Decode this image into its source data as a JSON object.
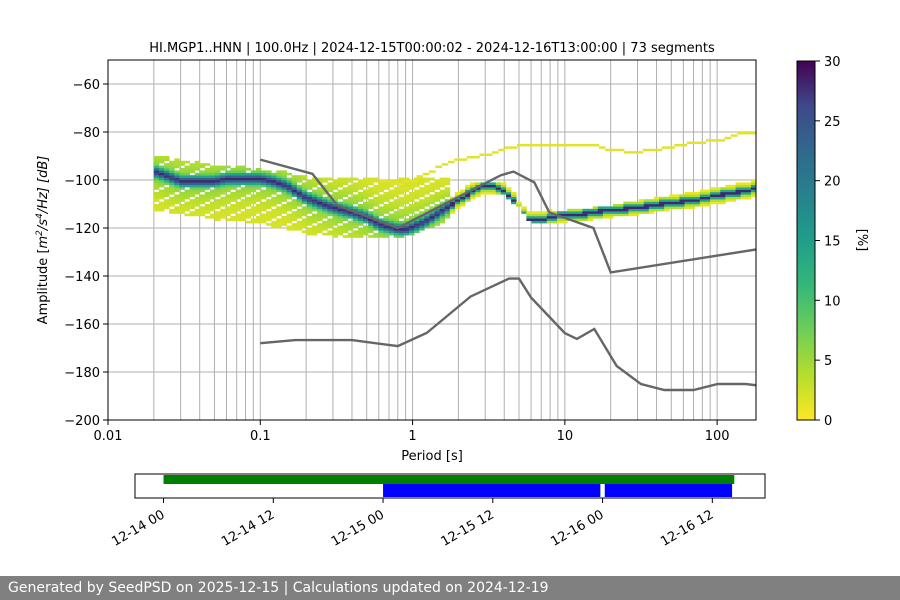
{
  "chart_data": [
    {
      "type": "heatmap",
      "title": "HI.MGP1..HNN | 100.0Hz | 2024-12-15T00:00:02 - 2024-12-16T13:00:00 | 73 segments",
      "xlabel": "Period [s]",
      "ylabel_parts": {
        "pre": "Amplitude [",
        "m": "m",
        "e1": "2",
        "s1": "/s",
        "e2": "4",
        "rest": "/Hz] [dB]"
      },
      "x_scale": "log",
      "xlim": [
        0.01,
        180
      ],
      "ylim": [
        -200,
        -50
      ],
      "x_ticks": [
        {
          "value": 0.01,
          "label": "0.01"
        },
        {
          "value": 0.1,
          "label": "0.1"
        },
        {
          "value": 1,
          "label": "1"
        },
        {
          "value": 10,
          "label": "10"
        },
        {
          "value": 100,
          "label": "100"
        }
      ],
      "y_ticks": [
        {
          "value": -60,
          "label": "−60"
        },
        {
          "value": -80,
          "label": "−80"
        },
        {
          "value": -100,
          "label": "−100"
        },
        {
          "value": -120,
          "label": "−120"
        },
        {
          "value": -140,
          "label": "−140"
        },
        {
          "value": -160,
          "label": "−160"
        },
        {
          "value": -180,
          "label": "−180"
        },
        {
          "value": -200,
          "label": "−200"
        }
      ],
      "grid": true,
      "colormap": "viridis_r",
      "colorbar": {
        "label": "[%]",
        "range": [
          0,
          30
        ],
        "ticks": [
          {
            "value": 0,
            "label": "0"
          },
          {
            "value": 5,
            "label": "5"
          },
          {
            "value": 10,
            "label": "10"
          },
          {
            "value": 15,
            "label": "15"
          },
          {
            "value": 20,
            "label": "20"
          },
          {
            "value": 25,
            "label": "25"
          },
          {
            "value": 30,
            "label": "30"
          }
        ]
      },
      "mode_curve": {
        "period": [
          0.02,
          0.025,
          0.03,
          0.04,
          0.05,
          0.06,
          0.08,
          0.1,
          0.12,
          0.15,
          0.2,
          0.3,
          0.4,
          0.5,
          0.6,
          0.7,
          0.8,
          0.9,
          1.0,
          1.2,
          1.5,
          2.0,
          2.5,
          3.0,
          3.5,
          4.0,
          4.5,
          5.0,
          5.5,
          6.0,
          7.0,
          8.0,
          10,
          12,
          15,
          20,
          30,
          50,
          70,
          100,
          150,
          180
        ],
        "power_db": [
          -97,
          -99,
          -101,
          -101,
          -101,
          -100,
          -100,
          -100,
          -101,
          -103,
          -108,
          -112,
          -114,
          -116,
          -119,
          -120,
          -121,
          -121,
          -120,
          -118,
          -114,
          -109,
          -105,
          -103,
          -103,
          -105,
          -108,
          -113,
          -116,
          -117,
          -117,
          -116,
          -115,
          -115,
          -114,
          -113,
          -112,
          -110,
          -109,
          -107,
          -105,
          -104
        ]
      },
      "density_cells": [
        {
          "period": [
            0.02,
            0.025,
            0.03,
            0.04,
            0.05,
            0.06,
            0.08,
            0.1,
            0.12,
            0.15,
            0.2,
            0.3,
            0.4,
            0.5,
            0.6,
            0.7,
            0.8,
            0.9,
            1.0,
            1.2,
            1.5,
            2.0,
            2.5,
            3.0,
            3.5,
            4.0,
            4.5,
            5.0,
            5.5,
            6.0,
            7.0,
            8.0,
            10,
            12,
            15,
            20,
            30,
            50,
            70,
            100,
            150,
            180
          ],
          "power_db": [
            -97,
            -99,
            -101,
            -101,
            -101,
            -100,
            -100,
            -100,
            -101,
            -103,
            -108,
            -112,
            -114,
            -116,
            -119,
            -120,
            -121,
            -121,
            -120,
            -118,
            -114,
            -109,
            -105,
            -103,
            -103,
            -105,
            -108,
            -113,
            -116,
            -117,
            -117,
            -116,
            -115,
            -115,
            -114,
            -113,
            -112,
            -110,
            -109,
            -107,
            -105,
            -104
          ],
          "percent": 28
        }
      ],
      "density_band": {
        "period": [
          0.02,
          0.03,
          0.05,
          0.08,
          0.1,
          0.15,
          0.2,
          0.3,
          0.4,
          0.6,
          0.8,
          1.0,
          1.5,
          2.0,
          3.0,
          4.0,
          5.0,
          6.0,
          8.0,
          10,
          15,
          20,
          30,
          50,
          70,
          100,
          150,
          180
        ],
        "upper_db": [
          -91,
          -93,
          -95,
          -96,
          -97,
          -98,
          -100,
          -101,
          -100,
          -101,
          -101,
          -100,
          -100,
          -102,
          -102,
          -103,
          -107,
          -111,
          -114,
          -114,
          -113,
          -112,
          -110,
          -108,
          -105,
          -103,
          -101,
          -100
        ],
        "lower_db": [
          -112,
          -114,
          -116,
          -117,
          -118,
          -120,
          -122,
          -123,
          -124,
          -124,
          -124,
          -122,
          -118,
          -112,
          -106,
          -106,
          -111,
          -118,
          -118,
          -117,
          -116,
          -115,
          -114,
          -112,
          -111,
          -110,
          -108,
          -107
        ]
      },
      "noise_model_high": {
        "period": [
          0.1,
          0.22,
          0.32,
          0.8,
          3.8,
          4.6,
          6.3,
          7.9,
          15.4,
          20,
          354.8
        ],
        "power_db": [
          -91.5,
          -97.4,
          -110.5,
          -120,
          -98,
          -96.5,
          -101,
          -113.5,
          -120,
          -138.5,
          -126
        ]
      },
      "noise_model_low": {
        "period": [
          0.1,
          0.17,
          0.4,
          0.8,
          1.24,
          2.4,
          4.3,
          5.0,
          6.0,
          10.0,
          12.0,
          15.6,
          21.9,
          31.6,
          45,
          70,
          101,
          154,
          328
        ],
        "power_db": [
          -168,
          -166.7,
          -166.7,
          -169.2,
          -163.7,
          -148.6,
          -141.1,
          -141.1,
          -149,
          -163.8,
          -166.2,
          -162.1,
          -177.5,
          -185,
          -187.5,
          -187.5,
          -185,
          -185,
          -187.5
        ]
      },
      "alt_quiet_curve": {
        "period": [
          0.6,
          0.8,
          1.0,
          1.5,
          2.0,
          3.0,
          5.0,
          8.0,
          10,
          15,
          20,
          30,
          50,
          70,
          100,
          150,
          180
        ],
        "power_db": [
          -101,
          -102,
          -101,
          -95,
          -92,
          -90,
          -86,
          -86,
          -86,
          -86,
          -88,
          -89,
          -87,
          -85,
          -84,
          -81,
          -81
        ]
      }
    },
    {
      "type": "timeline",
      "x_ticks": [
        {
          "label": "12-14 00",
          "days": 0
        },
        {
          "label": "12-14 12",
          "days": 0.5
        },
        {
          "label": "12-15 00",
          "days": 1.0
        },
        {
          "label": "12-15 12",
          "days": 1.5
        },
        {
          "label": "12-16 00",
          "days": 2.0
        },
        {
          "label": "12-16 12",
          "days": 2.5
        }
      ],
      "xlim_days": [
        -0.13,
        2.74
      ],
      "green_span_days": [
        0.0,
        2.6
      ],
      "blue_spans_days": [
        [
          1.0,
          1.99
        ],
        [
          2.01,
          2.59
        ]
      ],
      "colors": {
        "green": "#008000",
        "blue": "#0000ff"
      }
    }
  ],
  "footer": "Generated by SeedPSD on 2025-12-15 | Calculations updated on 2024-12-19",
  "colors": {
    "grid": "#b0b0b0",
    "noise_model": "#666666",
    "footer_bg": "#808080"
  }
}
